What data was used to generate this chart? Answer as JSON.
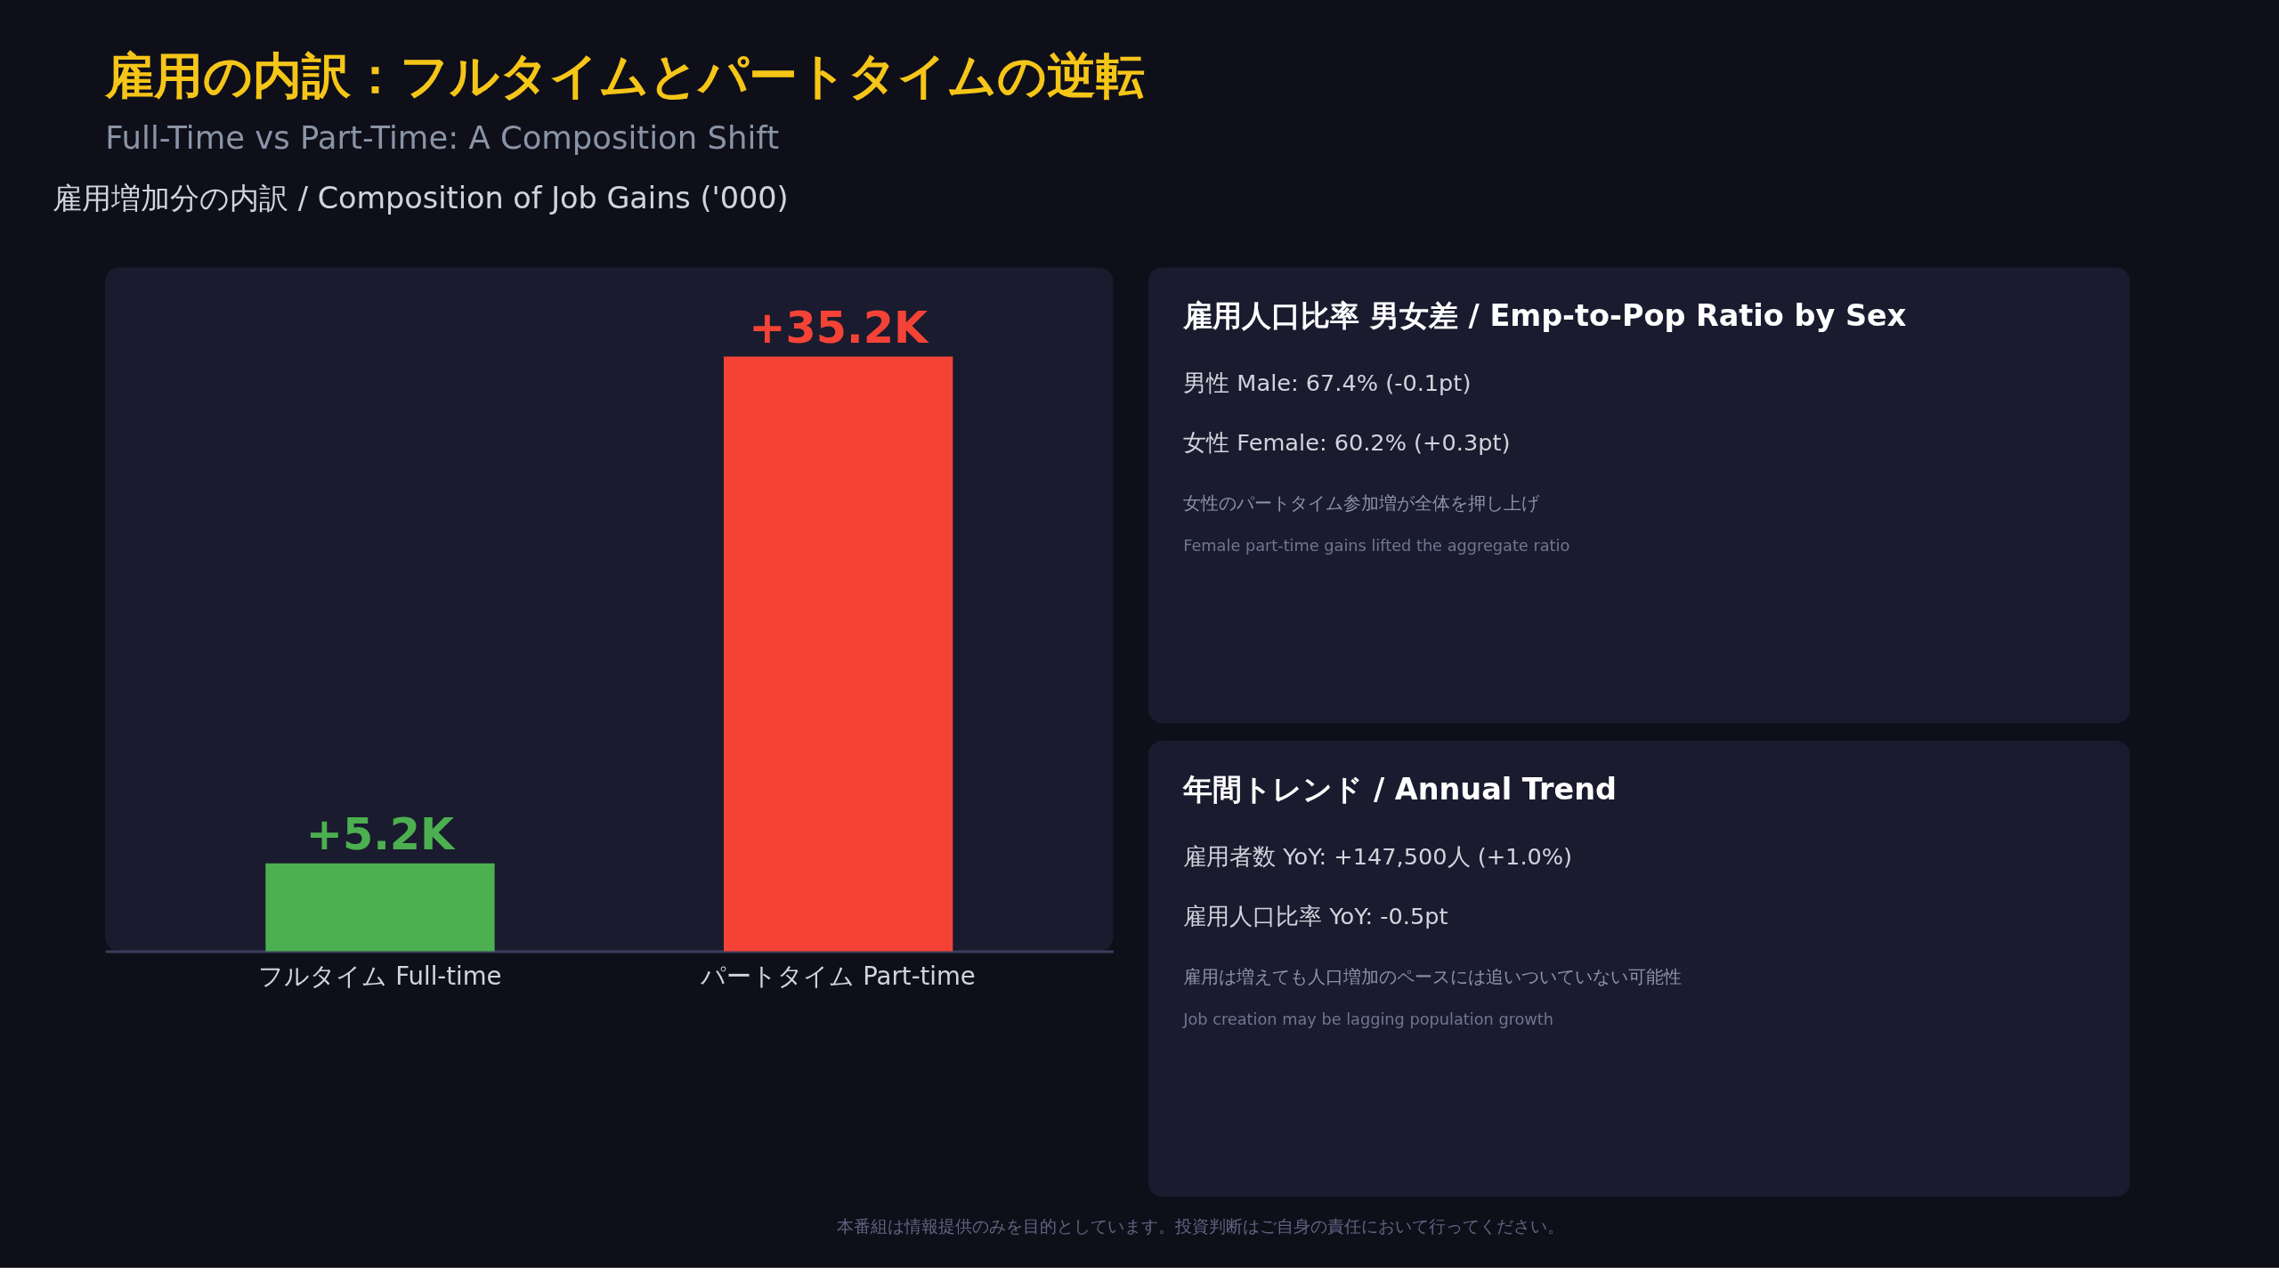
{
  "chart_data": [
    {
      "type": "other",
      "title": "雇用の内訳：フルタイムとパートタイムの逆転",
      "subtitle": "Full-Time vs Part-Time: A Composition Shift",
      "annotations": [
        "本番組は情報提供のみを目的としています。投資判断はご自身の責任において行ってください。"
      ]
    },
    {
      "type": "bar",
      "title": "雇用増加分の内訳 / Composition of Job Gains ('000)",
      "categories": [
        "フルタイム Full-time",
        "パートタイム Part-time"
      ],
      "values": [
        5.2,
        35.2
      ],
      "colors": [
        "#4caf50",
        "#f44336"
      ],
      "value_labels": [
        "+5.2K",
        "+35.2K"
      ]
    },
    {
      "type": "other",
      "title": "雇用人口比率 男女差 / Emp-to-Pop Ratio by Sex",
      "annotations": [
        "男性 Male: 67.4% (-0.1pt)",
        "女性 Female: 60.2% (+0.3pt)",
        "女性のパートタイム参加増が全体を押し上げ",
        "Female part-time gains lifted the aggregate ratio"
      ]
    },
    {
      "type": "other",
      "title": "年間トレンド / Annual Trend",
      "annotations": [
        "雇用者数 YoY: +147,500人 (+1.0%)",
        "雇用人口比率 YoY: -0.5pt",
        "雇用は増えても人口増加のペースには追いついていない可能性",
        "Job creation may be lagging population growth"
      ]
    }
  ]
}
